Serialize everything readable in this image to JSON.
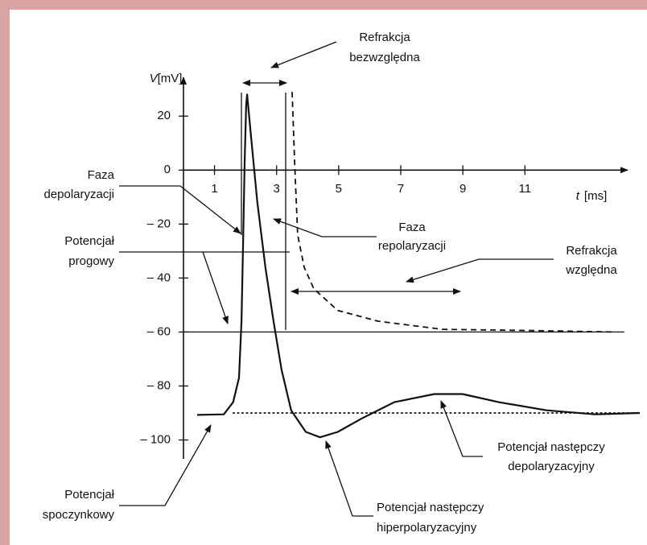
{
  "chart_data": {
    "type": "line",
    "y_label_var": "V",
    "y_label_unit": "[mV]",
    "x_label_var": "t",
    "x_label_unit": "[ms]",
    "xlim": [
      0,
      14.7
    ],
    "ylim": [
      -107,
      32
    ],
    "xticks": [
      1,
      3,
      5,
      7,
      9,
      11
    ],
    "yticks": [
      20,
      0,
      {
        "value": -20,
        "label": "– 20"
      },
      {
        "value": -40,
        "label": "– 40"
      },
      {
        "value": -60,
        "label": "– 60"
      },
      {
        "value": -80,
        "label": "– 80"
      },
      {
        "value": -100,
        "label": "– 100"
      }
    ],
    "series": [
      {
        "color": "#111111",
        "style": "solid",
        "x": [
          0.44,
          1.3,
          1.6,
          1.79,
          1.87,
          1.92,
          1.97,
          2.02,
          2.05,
          2.18,
          2.38,
          2.64,
          2.9,
          3.16,
          3.47,
          3.94,
          4.4,
          4.97,
          5.75,
          6.79,
          8.08,
          8.99,
          10.16,
          11.7,
          13.26,
          14.7
        ],
        "values": [
          -90.7,
          -90.5,
          -86,
          -77,
          -56,
          -27,
          3,
          24,
          28,
          12,
          -12,
          -36,
          -56,
          -74,
          -89,
          -97,
          -99,
          -97,
          -92,
          -86,
          -83,
          -83,
          -86,
          -89,
          -90.5,
          -90
        ]
      },
      {
        "color": "#111111",
        "style": "dashed",
        "x": [
          3.5,
          3.58,
          3.68,
          3.89,
          4.2,
          4.97,
          6.27,
          8.34,
          10.9,
          13.8
        ],
        "values": [
          29,
          3,
          -24,
          -36,
          -44,
          -52,
          -56,
          -59,
          -59.4,
          -60
        ]
      },
      {
        "color": "#111111",
        "style": "dotted",
        "x": [
          1.6,
          14.7
        ],
        "values": [
          -90,
          -90
        ]
      },
      {
        "color": "#111111",
        "style": "thin",
        "x": [
          0,
          14.2
        ],
        "values": [
          -60,
          -60
        ]
      }
    ],
    "annotations": [
      [
        "Refrakcja",
        "bezwzględna"
      ],
      [
        "Faza",
        "depolaryzacji"
      ],
      [
        "Faza",
        "repolaryzacji"
      ],
      [
        "Potencjał",
        "progowy"
      ],
      [
        "Refrakcja",
        "względna"
      ],
      [
        "Potencjał następczy",
        "depolaryzacyjny"
      ],
      [
        "Potencjał",
        "spoczynkowy"
      ],
      [
        "Potencjał następczy",
        "hiperpolaryzacyjny"
      ]
    ]
  }
}
